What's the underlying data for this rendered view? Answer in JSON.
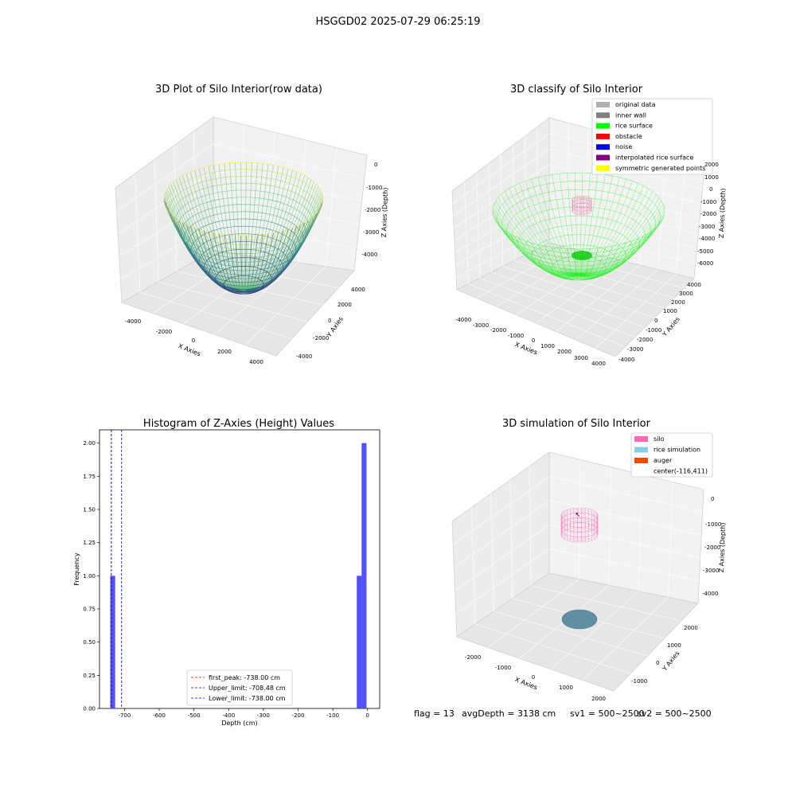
{
  "figure": {
    "suptitle": "HSGGD02 2025-07-29 06:25:19",
    "footer": {
      "flag": "flag = 13",
      "avg_depth": "avgDepth = 3138 cm",
      "sv1": "sv1 = 500~2500",
      "sv2": "sv2 = 500~2500"
    }
  },
  "panels": {
    "raw": {
      "title": "3D Plot of Silo Interior(row data)",
      "xlabel": "X Axies",
      "ylabel": "Y Axies",
      "zlabel": "Z Axies (Depth)",
      "xticks": [
        "-4000",
        "-2000",
        "0",
        "2000",
        "4000"
      ],
      "yticks": [
        "-4000",
        "-2000",
        "0",
        "2000",
        "4000"
      ],
      "zticks": [
        "0",
        "-1000",
        "-2000",
        "-3000",
        "-4000"
      ],
      "colormap": [
        "#440154",
        "#3b528b",
        "#21918c",
        "#5ec962",
        "#fde725"
      ]
    },
    "classify": {
      "title": "3D classify of Silo Interior",
      "xlabel": "X Axies",
      "ylabel": "Y Axies",
      "zlabel": "Z Axies (Depth)",
      "xticks": [
        "-4000",
        "-3000",
        "-2000",
        "-1000",
        "0",
        "1000",
        "2000",
        "3000",
        "4000"
      ],
      "yticks": [
        "-4000",
        "-3000",
        "-2000",
        "-1000",
        "0",
        "1000",
        "2000",
        "3000",
        "4000"
      ],
      "zticks": [
        "2000",
        "1000",
        "0",
        "-1000",
        "-2000",
        "-3000",
        "-4000",
        "-5000",
        "-6000"
      ],
      "legend": [
        {
          "label": "original data",
          "color": "#b0b0b0"
        },
        {
          "label": "inner wall",
          "color": "#808080"
        },
        {
          "label": "rice surface",
          "color": "#00ff00"
        },
        {
          "label": "obstacle",
          "color": "#ff0000"
        },
        {
          "label": "noise",
          "color": "#0000ff"
        },
        {
          "label": "interpolated rice surface",
          "color": "#800080"
        },
        {
          "label": "symmetric generated points",
          "color": "#ffff00"
        }
      ]
    },
    "simulation": {
      "title": "3D simulation of Silo Interior",
      "xlabel": "X Axies",
      "ylabel": "Y Axies",
      "zlabel": "Z Axies (Depth)",
      "xticks": [
        "-2000",
        "-1000",
        "0",
        "1000",
        "2000"
      ],
      "yticks": [
        "-1000",
        "0",
        "1000",
        "2000"
      ],
      "zticks": [
        "0",
        "-1000",
        "-2000",
        "-3000",
        "-4000"
      ],
      "legend": [
        {
          "label": "silo",
          "color": "#ff69b4"
        },
        {
          "label": "rice simulation",
          "color": "#87ceeb"
        },
        {
          "label": "auger",
          "color": "#ff4500"
        },
        {
          "label": "center(-116,411)",
          "color": ""
        }
      ]
    }
  },
  "chart_data": {
    "type": "bar",
    "title": "Histogram of Z-Axies (Height) Values",
    "xlabel": "Depth (cm)",
    "ylabel": "Frequency",
    "xlim": [
      -772,
      35
    ],
    "ylim": [
      0,
      2.1
    ],
    "xticks": [
      -700,
      -600,
      -500,
      -400,
      -300,
      -200,
      -100,
      0
    ],
    "yticks": [
      0.0,
      0.25,
      0.5,
      0.75,
      1.0,
      1.25,
      1.5,
      1.75,
      2.0
    ],
    "bars": [
      {
        "x0": -741,
        "x1": -727,
        "value": 1
      },
      {
        "x0": -31,
        "x1": -17,
        "value": 1
      },
      {
        "x0": -17,
        "x1": -3,
        "value": 2
      }
    ],
    "bar_color": "#4d4dff",
    "lines": [
      {
        "label": "first_peak: -738.00 cm",
        "x": -738.0,
        "color": "#ff0000",
        "dash": "3,2"
      },
      {
        "label": "Upper_limit: -708.48 cm",
        "x": -708.48,
        "color": "#0000ff",
        "dash": "3,2"
      },
      {
        "label": "Lower_limit: -738.00 cm",
        "x": -738.0,
        "color": "#0000ff",
        "dash": "3,2"
      }
    ]
  }
}
